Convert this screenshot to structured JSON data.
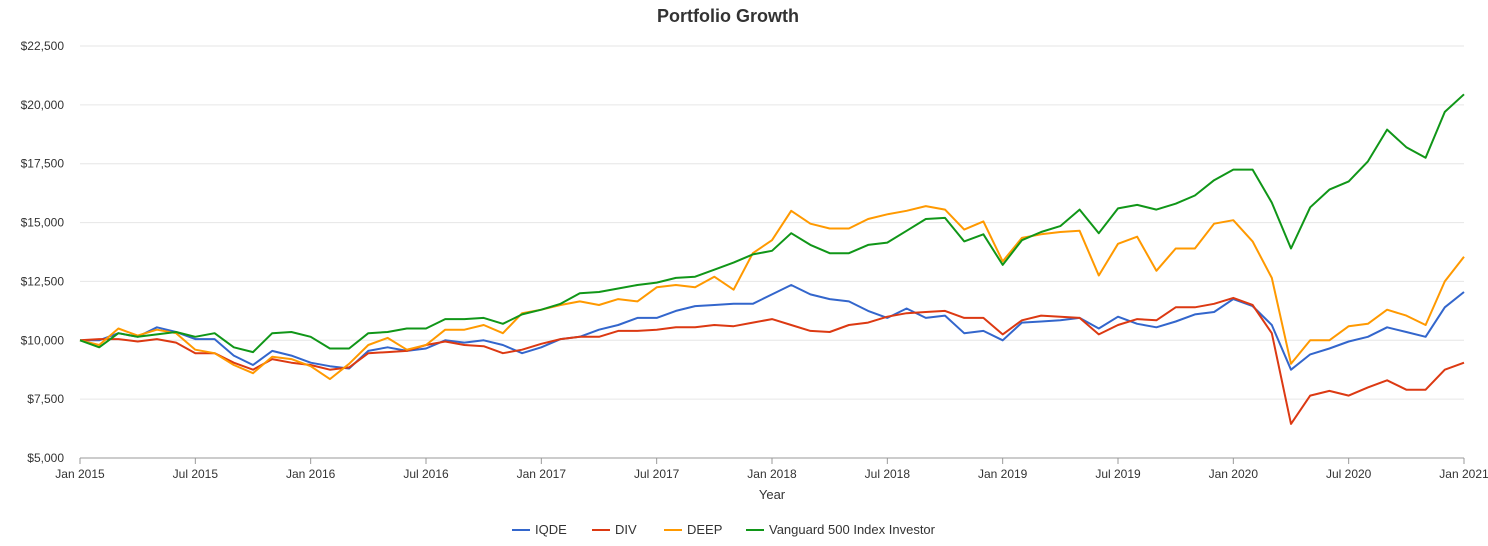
{
  "chart_data": {
    "type": "line",
    "title": "Portfolio Growth",
    "xlabel": "Year",
    "ylabel": "",
    "ylim": [
      5000,
      22500
    ],
    "yticks": [
      5000,
      7500,
      10000,
      12500,
      15000,
      17500,
      20000,
      22500
    ],
    "ytick_labels": [
      "$5,000",
      "$7,500",
      "$10,000",
      "$12,500",
      "$15,000",
      "$17,500",
      "$20,000",
      "$22,500"
    ],
    "xticks": [
      "2015-01",
      "2015-07",
      "2016-01",
      "2016-07",
      "2017-01",
      "2017-07",
      "2018-01",
      "2018-07",
      "2019-01",
      "2019-07",
      "2020-01",
      "2020-07",
      "2021-01"
    ],
    "xtick_labels": [
      "Jan 2015",
      "Jul 2015",
      "Jan 2016",
      "Jul 2016",
      "Jan 2017",
      "Jul 2017",
      "Jan 2018",
      "Jul 2018",
      "Jan 2019",
      "Jul 2019",
      "Jan 2020",
      "Jul 2020",
      "Jan 2021"
    ],
    "x": [
      "2015-01",
      "2015-02",
      "2015-03",
      "2015-04",
      "2015-05",
      "2015-06",
      "2015-07",
      "2015-08",
      "2015-09",
      "2015-10",
      "2015-11",
      "2015-12",
      "2016-01",
      "2016-02",
      "2016-03",
      "2016-04",
      "2016-05",
      "2016-06",
      "2016-07",
      "2016-08",
      "2016-09",
      "2016-10",
      "2016-11",
      "2016-12",
      "2017-01",
      "2017-02",
      "2017-03",
      "2017-04",
      "2017-05",
      "2017-06",
      "2017-07",
      "2017-08",
      "2017-09",
      "2017-10",
      "2017-11",
      "2017-12",
      "2018-01",
      "2018-02",
      "2018-03",
      "2018-04",
      "2018-05",
      "2018-06",
      "2018-07",
      "2018-08",
      "2018-09",
      "2018-10",
      "2018-11",
      "2018-12",
      "2019-01",
      "2019-02",
      "2019-03",
      "2019-04",
      "2019-05",
      "2019-06",
      "2019-07",
      "2019-08",
      "2019-09",
      "2019-10",
      "2019-11",
      "2019-12",
      "2020-01",
      "2020-02",
      "2020-03",
      "2020-04",
      "2020-05",
      "2020-06",
      "2020-07",
      "2020-08",
      "2020-09",
      "2020-10",
      "2020-11",
      "2020-12",
      "2021-01"
    ],
    "grid": true,
    "legend_position": "bottom",
    "series": [
      {
        "name": "IQDE",
        "color": "#3366cc",
        "values": [
          10000,
          10000,
          10300,
          10150,
          10550,
          10350,
          10050,
          10050,
          9350,
          8950,
          9550,
          9350,
          9050,
          8900,
          8800,
          9550,
          9700,
          9550,
          9650,
          10000,
          9900,
          10000,
          9800,
          9450,
          9700,
          10050,
          10150,
          10450,
          10650,
          10950,
          10950,
          11250,
          11450,
          11500,
          11550,
          11550,
          11950,
          12350,
          11950,
          11750,
          11650,
          11250,
          10950,
          11350,
          10950,
          11050,
          10300,
          10400,
          10000,
          10750,
          10800,
          10850,
          10950,
          10500,
          11000,
          10700,
          10550,
          10800,
          11100,
          11200,
          11750,
          11450,
          10650,
          8750,
          9400,
          9650,
          9950,
          10150,
          10550,
          10350,
          10150,
          11400,
          12050
        ]
      },
      {
        "name": "DIV",
        "color": "#dc3912",
        "values": [
          10000,
          10050,
          10050,
          9950,
          10050,
          9900,
          9450,
          9450,
          9050,
          8750,
          9200,
          9050,
          8950,
          8750,
          8850,
          9450,
          9500,
          9550,
          9800,
          9950,
          9800,
          9750,
          9450,
          9600,
          9850,
          10050,
          10150,
          10150,
          10400,
          10400,
          10450,
          10550,
          10550,
          10650,
          10600,
          10750,
          10900,
          10650,
          10400,
          10350,
          10650,
          10750,
          11000,
          11150,
          11200,
          11250,
          10950,
          10950,
          10250,
          10850,
          11050,
          11000,
          10950,
          10250,
          10650,
          10900,
          10850,
          11400,
          11400,
          11550,
          11800,
          11500,
          10300,
          6450,
          7650,
          7850,
          7650,
          8000,
          8300,
          7900,
          7900,
          8750,
          9050
        ]
      },
      {
        "name": "DEEP",
        "color": "#ff9900",
        "values": [
          10000,
          9800,
          10500,
          10200,
          10450,
          10300,
          9600,
          9450,
          8950,
          8600,
          9300,
          9200,
          8900,
          8350,
          9000,
          9800,
          10100,
          9600,
          9800,
          10450,
          10450,
          10650,
          10300,
          11150,
          11300,
          11500,
          11650,
          11500,
          11750,
          11650,
          12250,
          12350,
          12250,
          12700,
          12150,
          13700,
          14250,
          15500,
          14950,
          14750,
          14750,
          15150,
          15350,
          15500,
          15700,
          15550,
          14700,
          15050,
          13350,
          14350,
          14500,
          14600,
          14650,
          12750,
          14100,
          14400,
          12950,
          13900,
          13900,
          14950,
          15100,
          14200,
          12650,
          9000,
          10000,
          10000,
          10600,
          10700,
          11300,
          11050,
          10650,
          12500,
          13550
        ]
      },
      {
        "name": "Vanguard 500 Index Investor",
        "color": "#109618",
        "values": [
          10000,
          9700,
          10300,
          10150,
          10250,
          10350,
          10150,
          10300,
          9700,
          9500,
          10300,
          10350,
          10150,
          9650,
          9650,
          10300,
          10350,
          10500,
          10500,
          10900,
          10900,
          10950,
          10700,
          11100,
          11300,
          11550,
          12000,
          12050,
          12200,
          12350,
          12450,
          12650,
          12700,
          13000,
          13300,
          13650,
          13800,
          14550,
          14050,
          13700,
          13700,
          14050,
          14150,
          14650,
          15150,
          15200,
          14200,
          14500,
          13200,
          14250,
          14600,
          14850,
          15550,
          14550,
          15600,
          15750,
          15550,
          15800,
          16150,
          16800,
          17250,
          17250,
          15850,
          13900,
          15650,
          16400,
          16750,
          17600,
          18950,
          18200,
          17750,
          19700,
          20450
        ]
      }
    ]
  }
}
